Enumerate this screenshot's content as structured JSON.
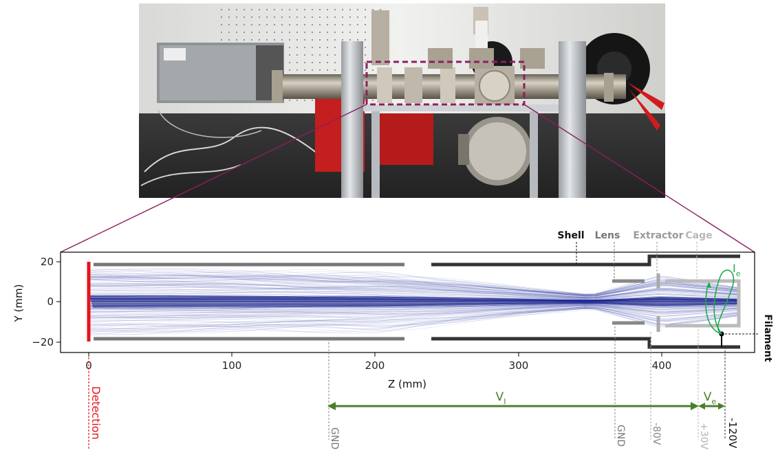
{
  "xlabel": "Z (mm)",
  "ylabel": "Y (mm)",
  "x_ticks": [
    "0",
    "100",
    "200",
    "300",
    "400"
  ],
  "y_ticks": [
    "20",
    "0",
    "−20"
  ],
  "components": {
    "shell": "Shell",
    "lens": "Lens",
    "extractor": "Extractor",
    "cage": "Cage",
    "filament": "Filament"
  },
  "detection": "Detection",
  "electron_current": {
    "symbol": "I",
    "subscript": "e"
  },
  "ion_voltage": {
    "symbol": "V",
    "subscript": "I"
  },
  "electron_voltage": {
    "symbol": "V",
    "subscript": "e"
  },
  "potentials": {
    "gnd_drift": "GND",
    "gnd_lens": "GND",
    "extractor": "-80V",
    "cage": "+30V",
    "filament": "-120V"
  },
  "colors": {
    "beam": "#1c2a9c",
    "detector": "#e8141b",
    "green": "#4a7f2b",
    "electron_orbit": "#1faa4b",
    "zoom_box": "#8b1f5f",
    "shell": "#333333",
    "tube": "#777777",
    "lens": "#888888",
    "extractor": "#aaaaaa",
    "cage": "#bbbbbb"
  }
}
